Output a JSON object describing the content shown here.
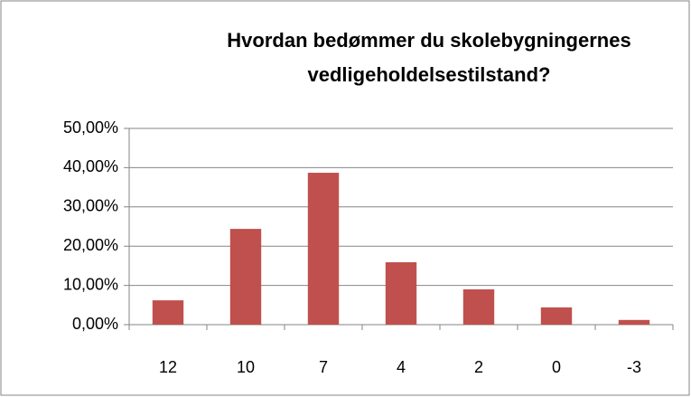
{
  "chart_data": {
    "type": "bar",
    "title": [
      "Hvordan bedømmer du skolebygningernes",
      "vedligeholdelsestilstand?"
    ],
    "categories": [
      "12",
      "10",
      "7",
      "4",
      "2",
      "0",
      "-3"
    ],
    "values": [
      6.2,
      24.4,
      38.7,
      15.9,
      9.0,
      4.4,
      1.2
    ],
    "color": "#c0504d",
    "ylim": [
      0,
      50
    ],
    "yticks": [
      {
        "value": 0,
        "label": "0,00%"
      },
      {
        "value": 10,
        "label": "10,00%"
      },
      {
        "value": 20,
        "label": "20,00%"
      },
      {
        "value": 30,
        "label": "30,00%"
      },
      {
        "value": 40,
        "label": "40,00%"
      },
      {
        "value": 50,
        "label": "50,00%"
      }
    ],
    "grid": true
  }
}
